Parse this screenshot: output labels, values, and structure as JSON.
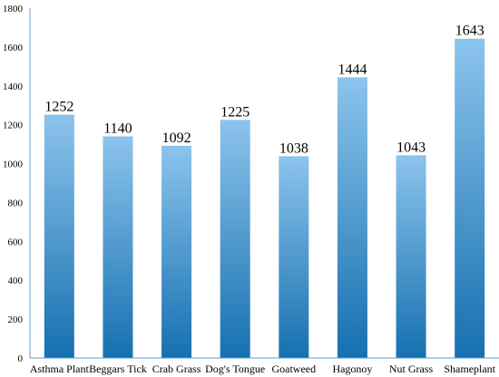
{
  "chart_data": {
    "type": "bar",
    "categories": [
      "Asthma Plant",
      "Beggars Tick",
      "Crab Grass",
      "Dog's Tongue",
      "Goatweed",
      "Hagonoy",
      "Nut Grass",
      "Shameplant"
    ],
    "values": [
      1252,
      1140,
      1092,
      1225,
      1038,
      1444,
      1043,
      1643
    ],
    "data_labels": [
      "1252",
      "1140",
      "1092",
      "1225",
      "1038",
      "1444",
      "1043",
      "1643"
    ],
    "title": "",
    "xlabel": "",
    "ylabel": "",
    "ylim": [
      0,
      1800
    ],
    "yticks": [
      0,
      200,
      400,
      600,
      800,
      1000,
      1200,
      1400,
      1600,
      1800
    ],
    "grid": false,
    "legend": "none",
    "colors": {
      "bar_top": "#8cc4ec",
      "bar_bottom": "#1670b0",
      "axis": "#5b9bd5"
    }
  }
}
